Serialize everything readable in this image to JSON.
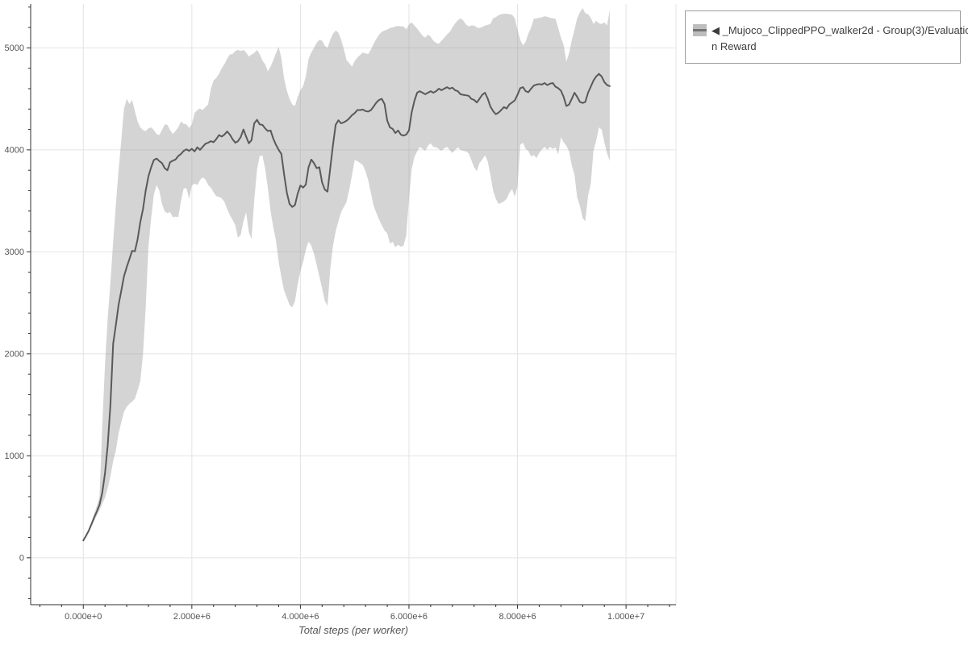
{
  "legend": {
    "label": "◀ _Mujoco_ClippedPPO_walker2d - Group(3)/Evaluation Reward",
    "label_line1": "◀ _Mujoco_ClippedPPO_walker2d - Group(3)/Evaluatio",
    "label_line2": "n Reward",
    "swatch_band_color": "#bdbdbd",
    "swatch_line_color": "#757575"
  },
  "chart_data": {
    "type": "line",
    "title": "",
    "xlabel": "Total steps (per worker)",
    "ylabel": "",
    "grid": true,
    "legend_position": "top-right-outside",
    "style": {
      "band_color": "#999999",
      "band_opacity": 0.42,
      "line_color": "#595959",
      "grid_color": "#e4e4e4",
      "axis_color": "#2f2f2f",
      "tick_label_color": "#555555",
      "xlabel_color": "#555555"
    },
    "x_axis": {
      "range": [
        -970000,
        10920000
      ],
      "major_ticks": [
        {
          "value": 0,
          "label": "0.000e+0"
        },
        {
          "value": 2000000,
          "label": "2.000e+6"
        },
        {
          "value": 4000000,
          "label": "4.000e+6"
        },
        {
          "value": 6000000,
          "label": "6.000e+6"
        },
        {
          "value": 8000000,
          "label": "8.000e+6"
        },
        {
          "value": 10000000,
          "label": "1.000e+7"
        }
      ],
      "minor_tick_step": 400000,
      "minor_tick_range": [
        -800000,
        10800000
      ]
    },
    "y_axis": {
      "range": [
        -460,
        5430
      ],
      "major_ticks": [
        {
          "value": 0,
          "label": "0"
        },
        {
          "value": 1000,
          "label": "1000"
        },
        {
          "value": 2000,
          "label": "2000"
        },
        {
          "value": 3000,
          "label": "3000"
        },
        {
          "value": 4000,
          "label": "4000"
        },
        {
          "value": 5000,
          "label": "5000"
        }
      ],
      "minor_tick_step": 200,
      "minor_tick_range": [
        -400,
        5400
      ]
    },
    "x_start": 0,
    "x_step": 50000,
    "series": [
      {
        "name": "mean",
        "values": [
          170,
          215,
          265,
          330,
          395,
          455,
          520,
          640,
          830,
          1100,
          1500,
          2100,
          2280,
          2480,
          2620,
          2760,
          2850,
          2930,
          3010,
          3005,
          3120,
          3290,
          3420,
          3600,
          3740,
          3830,
          3900,
          3915,
          3890,
          3870,
          3820,
          3800,
          3880,
          3895,
          3905,
          3940,
          3960,
          3990,
          4005,
          3990,
          4010,
          3985,
          4025,
          4000,
          4030,
          4060,
          4070,
          4085,
          4075,
          4105,
          4145,
          4130,
          4150,
          4180,
          4150,
          4105,
          4070,
          4085,
          4125,
          4200,
          4130,
          4065,
          4095,
          4260,
          4295,
          4250,
          4245,
          4210,
          4185,
          4190,
          4110,
          4050,
          4000,
          3960,
          3760,
          3580,
          3470,
          3440,
          3460,
          3570,
          3650,
          3630,
          3660,
          3830,
          3905,
          3870,
          3820,
          3830,
          3680,
          3610,
          3590,
          3820,
          4050,
          4245,
          4290,
          4260,
          4270,
          4285,
          4310,
          4340,
          4360,
          4390,
          4390,
          4395,
          4380,
          4375,
          4390,
          4425,
          4465,
          4490,
          4500,
          4450,
          4285,
          4220,
          4205,
          4165,
          4190,
          4150,
          4140,
          4150,
          4190,
          4365,
          4480,
          4560,
          4575,
          4560,
          4545,
          4560,
          4575,
          4560,
          4575,
          4600,
          4585,
          4600,
          4615,
          4600,
          4610,
          4585,
          4575,
          4545,
          4540,
          4535,
          4530,
          4500,
          4490,
          4465,
          4500,
          4540,
          4560,
          4505,
          4425,
          4380,
          4350,
          4365,
          4390,
          4420,
          4405,
          4445,
          4465,
          4485,
          4540,
          4605,
          4615,
          4575,
          4565,
          4600,
          4630,
          4640,
          4645,
          4640,
          4655,
          4635,
          4650,
          4655,
          4620,
          4605,
          4580,
          4520,
          4430,
          4445,
          4500,
          4560,
          4520,
          4470,
          4460,
          4470,
          4560,
          4620,
          4680,
          4720,
          4745,
          4720,
          4665,
          4635,
          4625
        ]
      },
      {
        "name": "band_upper",
        "values": [
          175,
          225,
          280,
          350,
          430,
          510,
          600,
          1300,
          1900,
          2350,
          2700,
          3100,
          3460,
          3800,
          4100,
          4400,
          4500,
          4450,
          4490,
          4380,
          4280,
          4220,
          4195,
          4185,
          4210,
          4220,
          4195,
          4155,
          4145,
          4195,
          4250,
          4245,
          4195,
          4155,
          4185,
          4220,
          4280,
          4255,
          4250,
          4215,
          4250,
          4360,
          4390,
          4405,
          4390,
          4420,
          4445,
          4600,
          4680,
          4705,
          4745,
          4800,
          4840,
          4895,
          4935,
          4940,
          4970,
          4980,
          4970,
          4980,
          4955,
          4915,
          4935,
          4950,
          4980,
          4940,
          4875,
          4840,
          4770,
          4815,
          4880,
          4950,
          5010,
          4900,
          4700,
          4580,
          4500,
          4445,
          4430,
          4520,
          4585,
          4625,
          4720,
          4890,
          4955,
          5000,
          5050,
          5080,
          5070,
          5020,
          5000,
          5080,
          5140,
          5170,
          5150,
          5080,
          4990,
          4880,
          4850,
          4815,
          4870,
          4905,
          4930,
          4955,
          4945,
          4940,
          4985,
          5040,
          5090,
          5130,
          5160,
          5170,
          5180,
          5195,
          5200,
          5210,
          5215,
          5210,
          5210,
          5180,
          5230,
          5250,
          5220,
          5190,
          5155,
          5120,
          5100,
          5130,
          5110,
          5070,
          5050,
          5040,
          5070,
          5100,
          5130,
          5155,
          5200,
          5240,
          5270,
          5290,
          5270,
          5230,
          5210,
          5220,
          5220,
          5200,
          5195,
          5205,
          5220,
          5225,
          5235,
          5290,
          5300,
          5320,
          5330,
          5335,
          5335,
          5330,
          5325,
          5290,
          5180,
          5080,
          5025,
          5060,
          5140,
          5200,
          5285,
          5290,
          5295,
          5300,
          5310,
          5305,
          5295,
          5290,
          5285,
          5195,
          5100,
          5030,
          4865,
          4950,
          5075,
          5180,
          5290,
          5350,
          5390,
          5340,
          5330,
          5295,
          5235,
          5265,
          5240,
          5235,
          5250,
          5220,
          5375
        ]
      },
      {
        "name": "band_lower",
        "values": [
          165,
          205,
          250,
          305,
          360,
          415,
          467,
          530,
          590,
          680,
          800,
          950,
          1050,
          1220,
          1330,
          1430,
          1480,
          1510,
          1530,
          1560,
          1640,
          1730,
          2000,
          2450,
          3050,
          3330,
          3560,
          3655,
          3600,
          3470,
          3395,
          3380,
          3390,
          3340,
          3345,
          3340,
          3500,
          3620,
          3625,
          3520,
          3650,
          3670,
          3655,
          3705,
          3730,
          3710,
          3655,
          3630,
          3585,
          3545,
          3540,
          3525,
          3490,
          3420,
          3360,
          3315,
          3260,
          3140,
          3165,
          3300,
          3390,
          3190,
          3125,
          3510,
          3805,
          3940,
          3945,
          3815,
          3630,
          3400,
          3240,
          3110,
          2900,
          2750,
          2620,
          2550,
          2480,
          2455,
          2520,
          2680,
          2810,
          2900,
          3020,
          3100,
          3060,
          2980,
          2870,
          2760,
          2640,
          2520,
          2470,
          2830,
          3060,
          3200,
          3300,
          3390,
          3440,
          3490,
          3610,
          3750,
          3900,
          3890,
          3870,
          3850,
          3790,
          3700,
          3575,
          3450,
          3380,
          3315,
          3260,
          3210,
          3180,
          3080,
          3100,
          3045,
          3070,
          3050,
          3060,
          3160,
          3520,
          3810,
          3930,
          3985,
          4030,
          4010,
          3990,
          4040,
          4065,
          4030,
          4025,
          4010,
          3990,
          4015,
          4030,
          4000,
          3970,
          4000,
          4025,
          4000,
          3990,
          3985,
          3965,
          3900,
          3830,
          3790,
          3870,
          3905,
          3945,
          3890,
          3755,
          3600,
          3520,
          3470,
          3480,
          3495,
          3520,
          3580,
          3615,
          3540,
          3640,
          4050,
          4070,
          4010,
          3990,
          3935,
          3950,
          3920,
          3970,
          4005,
          4030,
          4000,
          4030,
          4010,
          4025,
          3955,
          4125,
          4075,
          4040,
          3985,
          3850,
          3755,
          3535,
          3450,
          3330,
          3300,
          3550,
          3670,
          3990,
          4090,
          4220,
          4200,
          4075,
          3965,
          3890
        ]
      }
    ]
  }
}
